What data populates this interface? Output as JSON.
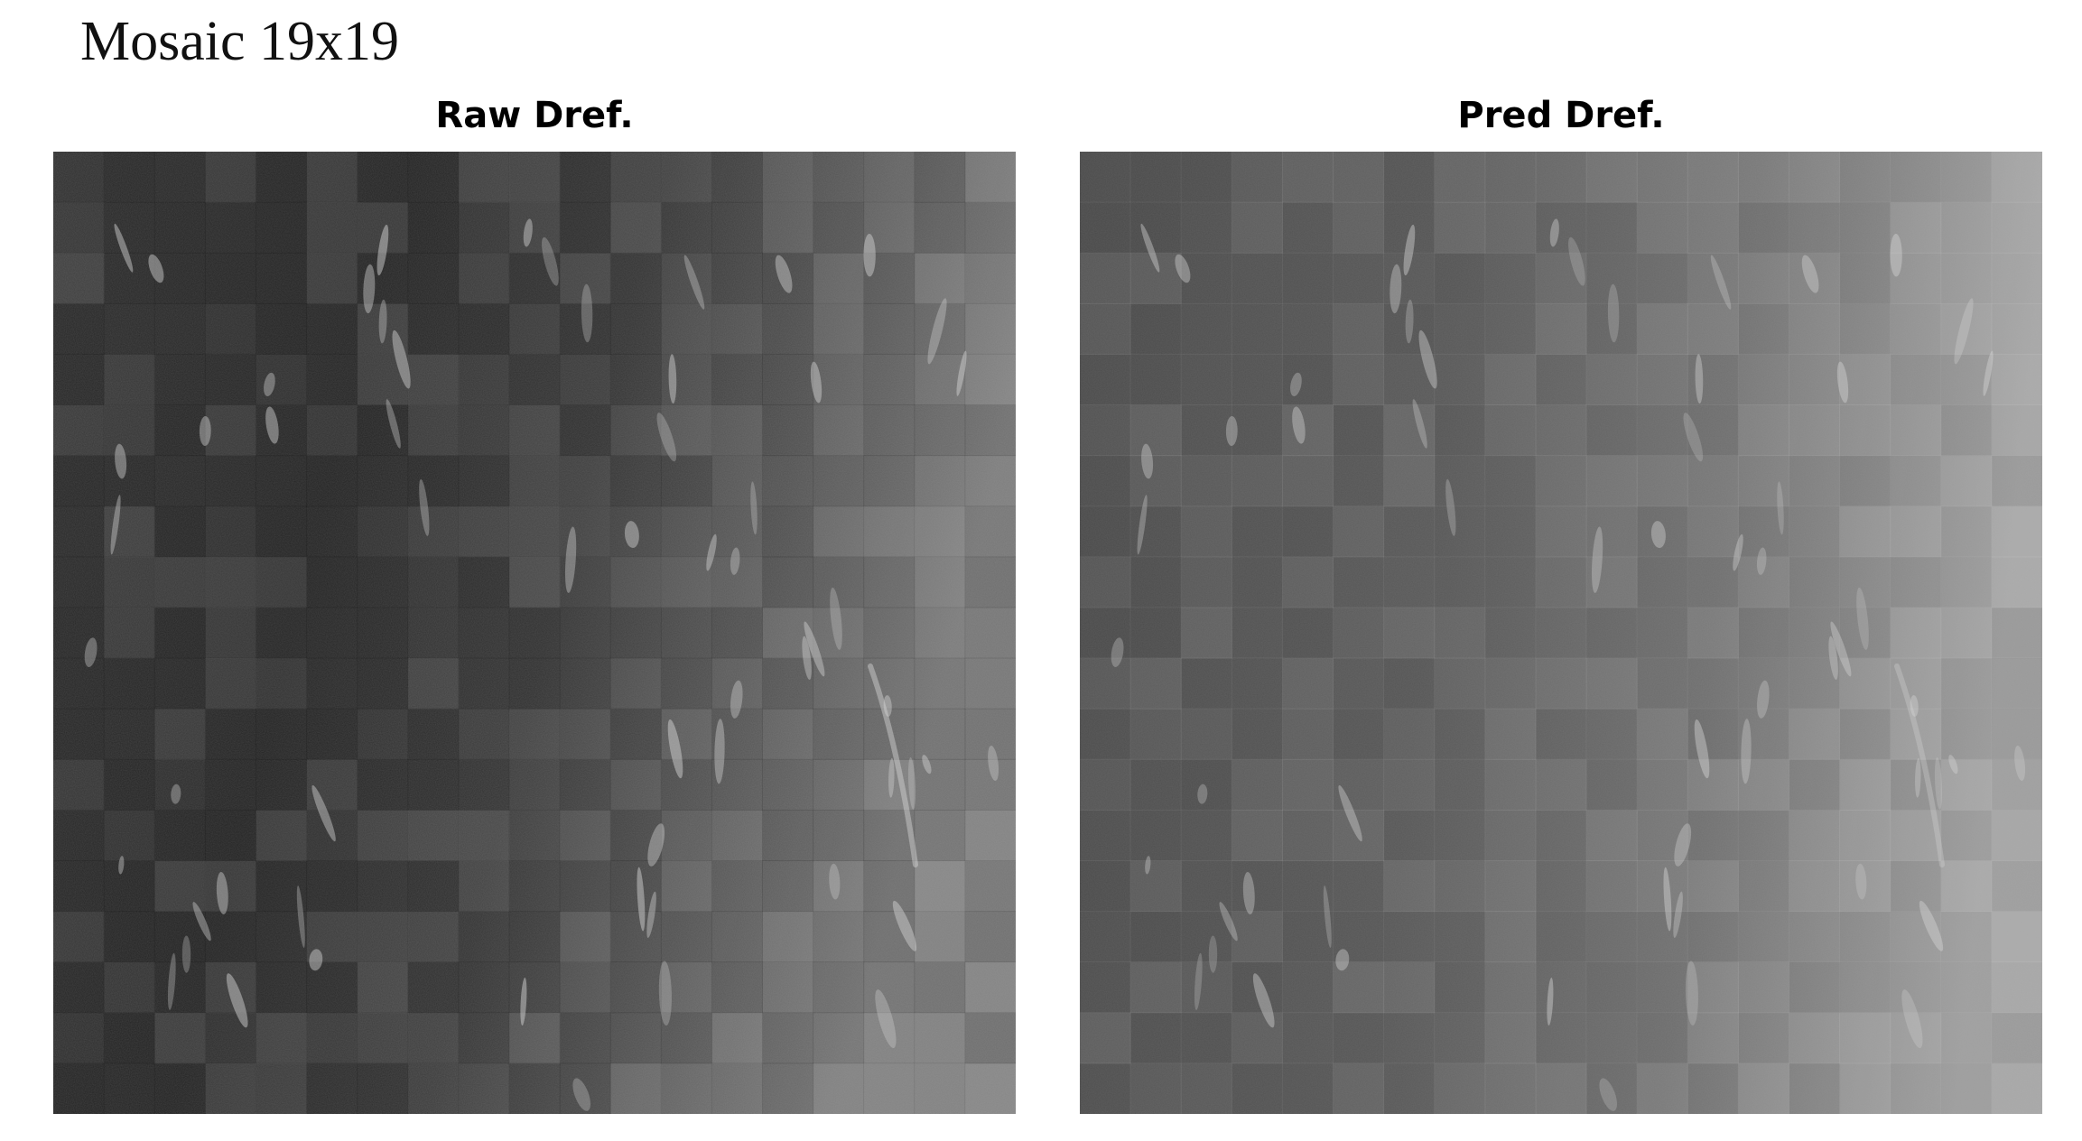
{
  "title": "Mosaic 19x19",
  "mosaic": {
    "rows": 19,
    "cols": 19
  },
  "panels": [
    {
      "id": "raw",
      "label": "Raw Dref.",
      "tone": {
        "base_dark": "#2b2b2b",
        "base_light": "#7a7a7a",
        "grid_line": "#000000",
        "streak": "#d8d8d8"
      }
    },
    {
      "id": "pred",
      "label": "Pred Dref.",
      "tone": {
        "base_dark": "#4a4a4a",
        "base_light": "#a8a8a8",
        "grid_line": "#ffffff",
        "streak": "#dcdcdc"
      }
    }
  ]
}
